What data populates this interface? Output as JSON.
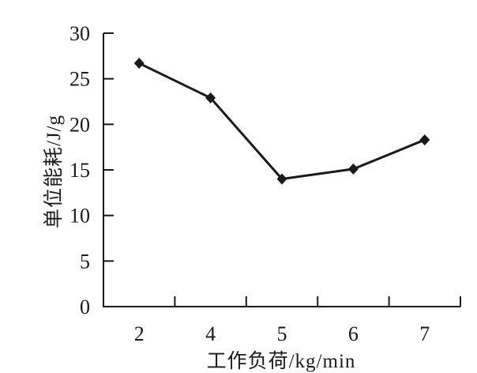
{
  "figure": {
    "background": "#ffffff",
    "ink_color": "#1a1a1a"
  },
  "chart_data": {
    "type": "line",
    "title": "",
    "xlabel": "工作负荷/kg/min",
    "ylabel": "单位能耗/J/g",
    "categories": [
      "2",
      "4",
      "5",
      "6",
      "7"
    ],
    "values": [
      26.7,
      22.9,
      14.0,
      15.1,
      18.3
    ],
    "yticks": [
      0,
      5,
      10,
      15,
      20,
      25,
      30
    ],
    "ylim": [
      0,
      30
    ],
    "grid": false,
    "legend": "none",
    "marker": "diamond",
    "line_color": "#1a1a1a"
  }
}
